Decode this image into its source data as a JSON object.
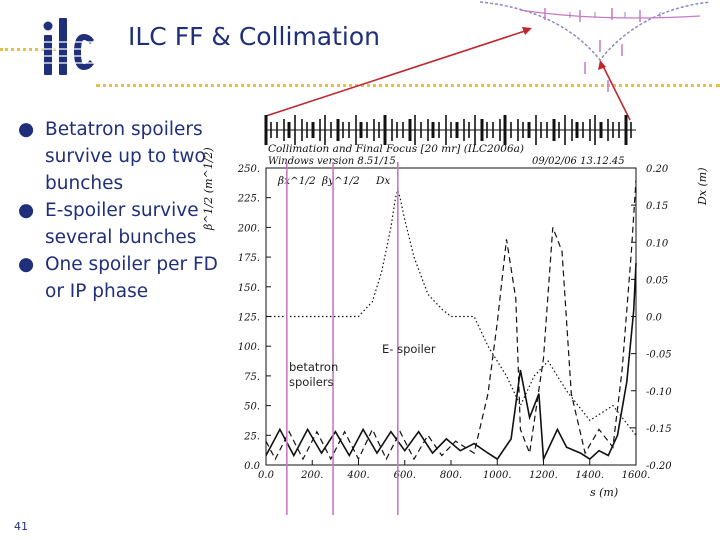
{
  "slide": {
    "title": "ILC FF & Collimation",
    "logo_text": "ilc",
    "page_number": "41",
    "bullets": [
      "Betatron spoilers survive up to two bunches",
      "E-spoiler survive several bunches",
      "One spoiler per FD or IP phase"
    ],
    "annotations": {
      "espoiler": "E- spoiler",
      "betatron": "betatron spoilers"
    }
  },
  "colors": {
    "title": "#1f2f7a",
    "dotted_rule": "#e3c04a",
    "pointer": "#c0282f",
    "marker": "#c77ac6"
  },
  "chart_data": {
    "type": "line",
    "title": "Collimation and Final Focus [20 mr] (ILC2006a)",
    "subtitle": "Windows version 8.51/15",
    "datestamp": "09/02/06  13.12.45",
    "xlabel": "s (m)",
    "ylabel": "β^1/2 (m^1/2)",
    "y2label": "Dx (m)",
    "xlim": [
      0,
      1600
    ],
    "ylim": [
      0,
      250
    ],
    "y2lim": [
      -0.2,
      0.2
    ],
    "xticks": [
      "0.0",
      "200.",
      "400.",
      "600.",
      "800.",
      "1000.",
      "1200.",
      "1400.",
      "1600."
    ],
    "yticks": [
      "0.0",
      "25.",
      "50.",
      "75.",
      "100.",
      "125.",
      "150.",
      "175.",
      "200.",
      "225.",
      "250."
    ],
    "y2ticks": [
      "-0.20",
      "-0.15",
      "-0.10",
      "-0.05",
      "0.0",
      "0.05",
      "0.10",
      "0.15",
      "0.20"
    ],
    "legend": [
      "βx^1/2",
      "βy^1/2",
      "Dx"
    ],
    "markers": [
      {
        "label": "betatron spoilers",
        "s": [
          90,
          290
        ]
      },
      {
        "label": "E- spoiler",
        "s": [
          570
        ]
      }
    ],
    "series": [
      {
        "name": "βx^1/2",
        "style": "solid",
        "axis": "left",
        "x": [
          0,
          60,
          120,
          180,
          240,
          300,
          360,
          420,
          480,
          540,
          600,
          660,
          720,
          780,
          840,
          900,
          960,
          1000,
          1060,
          1100,
          1140,
          1180,
          1200,
          1260,
          1300,
          1360,
          1400,
          1440,
          1480,
          1520,
          1560,
          1590,
          1600
        ],
        "y": [
          8,
          30,
          8,
          30,
          10,
          28,
          8,
          30,
          10,
          28,
          12,
          28,
          10,
          22,
          12,
          18,
          10,
          5,
          22,
          80,
          40,
          60,
          5,
          30,
          15,
          10,
          5,
          12,
          8,
          25,
          70,
          130,
          170
        ]
      },
      {
        "name": "βy^1/2",
        "style": "dashed",
        "axis": "left",
        "x": [
          0,
          40,
          100,
          160,
          220,
          280,
          340,
          400,
          460,
          520,
          580,
          640,
          700,
          760,
          820,
          900,
          960,
          1000,
          1040,
          1080,
          1100,
          1140,
          1200,
          1240,
          1280,
          1320,
          1380,
          1440,
          1500,
          1540,
          1580,
          1600
        ],
        "y": [
          20,
          5,
          28,
          5,
          28,
          5,
          28,
          5,
          30,
          5,
          28,
          5,
          25,
          8,
          20,
          10,
          60,
          120,
          190,
          140,
          30,
          10,
          90,
          200,
          180,
          60,
          10,
          30,
          15,
          80,
          180,
          240
        ]
      },
      {
        "name": "Dx",
        "style": "dotted",
        "axis": "right",
        "x": [
          0,
          300,
          400,
          460,
          500,
          540,
          560,
          570,
          580,
          600,
          640,
          700,
          760,
          800,
          860,
          900,
          960,
          1040,
          1100,
          1160,
          1220,
          1300,
          1400,
          1500,
          1600
        ],
        "y": [
          0,
          0,
          0,
          0.02,
          0.06,
          0.12,
          0.16,
          0.17,
          0.16,
          0.13,
          0.08,
          0.03,
          0.01,
          0,
          0,
          0,
          -0.04,
          -0.08,
          -0.12,
          -0.08,
          -0.06,
          -0.1,
          -0.14,
          -0.12,
          -0.16
        ]
      }
    ]
  }
}
